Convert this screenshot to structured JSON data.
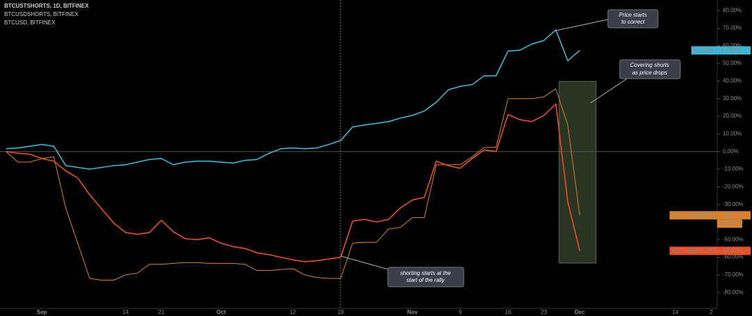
{
  "chart_data": {
    "type": "line",
    "legend": [
      "BTCUSTSHORTS, 1D, BITFINEX",
      "BTCUSDSHORTS, BITFINEX",
      "BTCUSD, BITFINEX"
    ],
    "categories": [
      null,
      null,
      null,
      "Sep",
      null,
      null,
      null,
      null,
      null,
      null,
      "14",
      null,
      null,
      "21",
      null,
      null,
      null,
      null,
      "Oct",
      null,
      null,
      null,
      null,
      null,
      "12",
      null,
      null,
      null,
      "19",
      null,
      null,
      null,
      null,
      null,
      "Nov",
      null,
      null,
      null,
      "9",
      null,
      null,
      null,
      "16",
      null,
      null,
      "23",
      null,
      null,
      "Dec",
      null,
      null,
      null,
      null,
      null,
      null,
      null,
      "14",
      null,
      null,
      "2"
    ],
    "series": [
      {
        "name": "BTCUSTSHORTS",
        "color": "#d9822b",
        "width": 1,
        "last_label": "-36.20%",
        "countdown": "18:28:59",
        "values": [
          0,
          -6,
          -6,
          -4,
          -3,
          -32,
          -52,
          -72,
          -73,
          -73,
          -70,
          -69,
          -64,
          -64,
          -63.5,
          -63,
          -63,
          -63.5,
          -63.5,
          -63.5,
          -64,
          -67.5,
          -67.5,
          -67,
          -66.5,
          -70,
          -71.5,
          -72,
          -72,
          -52,
          -51.5,
          -51.5,
          -44,
          -43,
          -37.5,
          -37.5,
          -7.5,
          -7.5,
          -7.5,
          -3,
          2.4,
          2.4,
          30,
          30,
          30,
          31,
          35.6,
          15,
          -36.2,
          null,
          null,
          null,
          null,
          null,
          null,
          null,
          null,
          null,
          null,
          null
        ]
      },
      {
        "name": "BTCUSDSHORTS",
        "color": "#e8502a",
        "width": 1.6,
        "last_label": "-56.37%",
        "values": [
          0,
          -1,
          -1.5,
          -4,
          -5.5,
          -11,
          -15,
          -24.5,
          -32.5,
          -40.5,
          -46,
          -47,
          -46,
          -39,
          -45.5,
          -49.5,
          -50,
          -49,
          -52,
          -54,
          -55,
          -57.5,
          -58.5,
          -60,
          -61.5,
          -62.5,
          -62,
          -61,
          -60,
          -39.5,
          -38.5,
          -40,
          -38.5,
          -32,
          -27.5,
          -26,
          -5.5,
          -8,
          -9.5,
          -4,
          1,
          0,
          21,
          18,
          17,
          20.5,
          27,
          -28.5,
          -56.37,
          null,
          null,
          null,
          null,
          null,
          null,
          null,
          null,
          null,
          null,
          null
        ]
      },
      {
        "name": "BTCUSD",
        "color": "#3fb5d6",
        "width": 1.6,
        "last_label": "57.39%",
        "values": [
          1.6,
          2,
          3,
          4,
          3,
          -8,
          -9,
          -10,
          -9,
          -8,
          -7.5,
          -6,
          -4.5,
          -4,
          -7.5,
          -6,
          -5.5,
          -5.5,
          -6,
          -6.5,
          -5,
          -4.5,
          -1,
          1.6,
          2,
          1.6,
          2,
          4,
          6.3,
          14,
          15,
          16,
          17,
          19,
          20.5,
          23,
          28,
          35,
          37,
          38,
          43,
          43,
          57,
          57.5,
          61,
          63,
          69,
          51.5,
          57.39,
          null,
          null,
          null,
          null,
          null,
          null,
          null,
          null,
          null,
          null,
          null
        ]
      }
    ],
    "ylim": [
      -89,
      86
    ],
    "yticks": [
      {
        "value": 80,
        "label": "80.00%"
      },
      {
        "value": 70,
        "label": "70.00%"
      },
      {
        "value": 60,
        "label": "60.00%"
      },
      {
        "value": 50,
        "label": "50.00%"
      },
      {
        "value": 40,
        "label": "40.00%"
      },
      {
        "value": 30,
        "label": "30.00%"
      },
      {
        "value": 20,
        "label": "20.00%"
      },
      {
        "value": 10,
        "label": "10.00%"
      },
      {
        "value": 0,
        "label": "0.00%"
      },
      {
        "value": -10,
        "label": "-10.00%"
      },
      {
        "value": -20,
        "label": "-20.00%"
      },
      {
        "value": -30,
        "label": "-30.00%"
      },
      {
        "value": -40,
        "label": "-40.00%"
      },
      {
        "value": -50,
        "label": "-50.00%"
      },
      {
        "value": -60,
        "label": "-60.00%"
      },
      {
        "value": -70,
        "label": "-70.00%"
      },
      {
        "value": -80,
        "label": "-80.00%"
      }
    ],
    "annotations": [
      [
        "Price starts",
        "to correct"
      ],
      [
        "Covering shorts",
        "as price drops"
      ],
      [
        "shorting starts at the",
        "start of the rally"
      ]
    ]
  }
}
